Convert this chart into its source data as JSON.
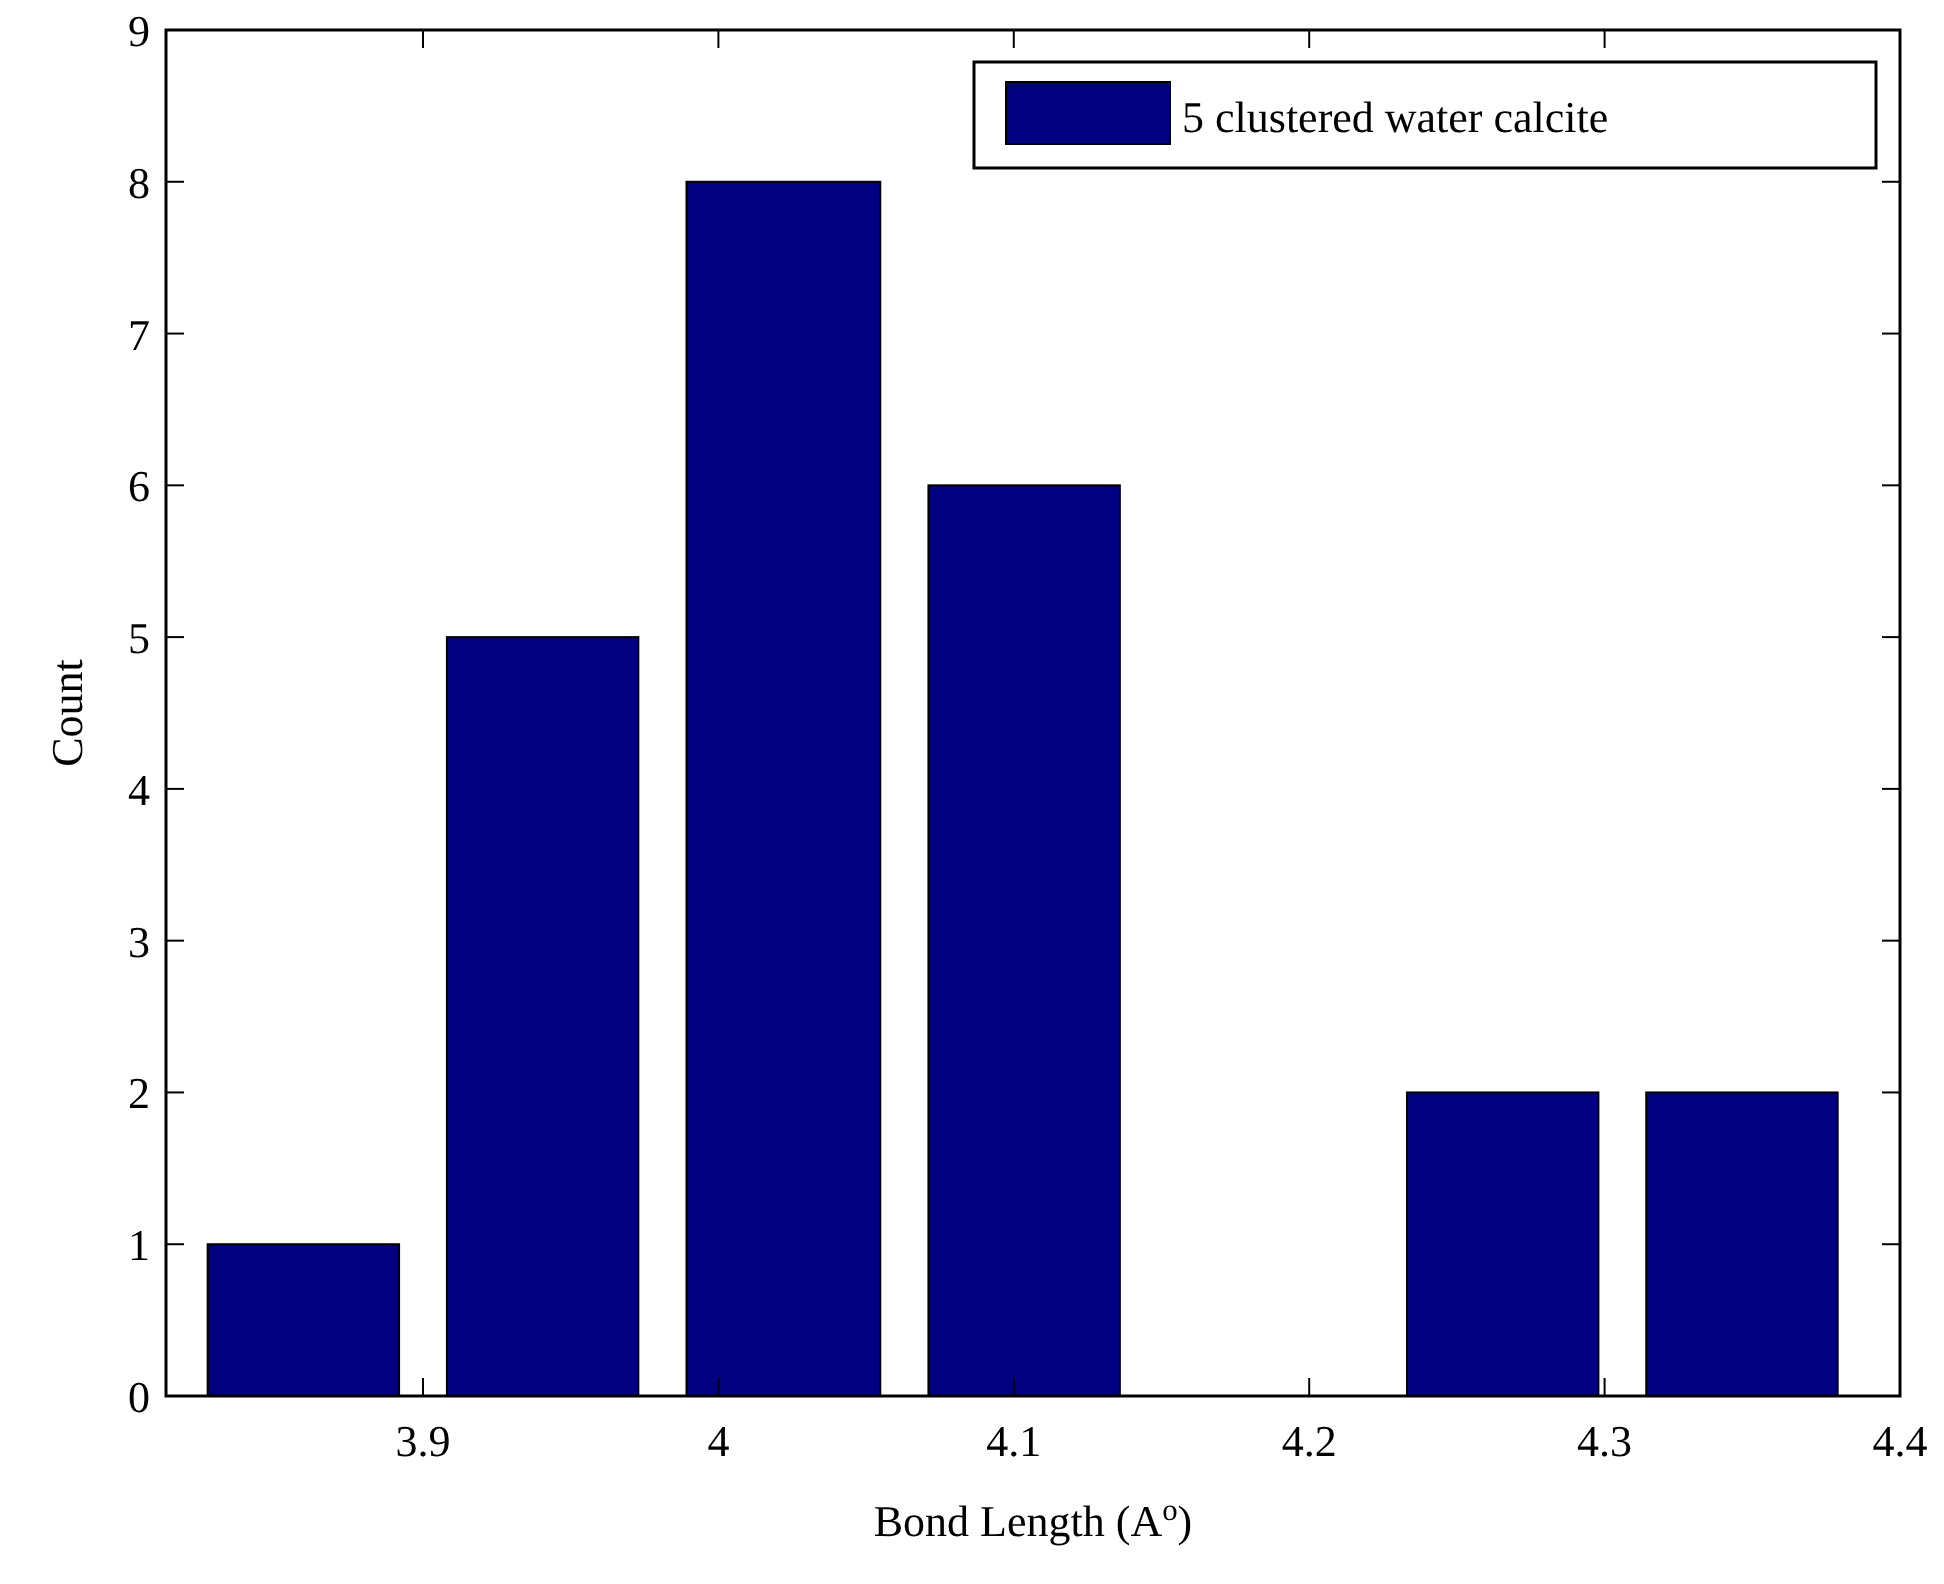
{
  "chart_data": {
    "type": "histogram",
    "xlabel": "Bond Length (A$^{o}$)",
    "ylabel": "Count",
    "bins": [
      3.819,
      3.9,
      3.981,
      4.063,
      4.144,
      4.225,
      4.306,
      4.387
    ],
    "series": [
      {
        "name": "5 clustered water calcite",
        "color": "#000080",
        "values": [
          1,
          5,
          8,
          6,
          0,
          2,
          2
        ]
      }
    ],
    "xlim": [
      3.813,
      4.4
    ],
    "xticks": [
      3.9,
      4,
      4.1,
      4.2,
      4.3,
      4.4
    ],
    "ylim": [
      0,
      9
    ],
    "yticks": [
      0,
      1,
      2,
      3,
      4,
      5,
      6,
      7,
      8,
      9
    ],
    "legend": "top right",
    "grid": false
  }
}
